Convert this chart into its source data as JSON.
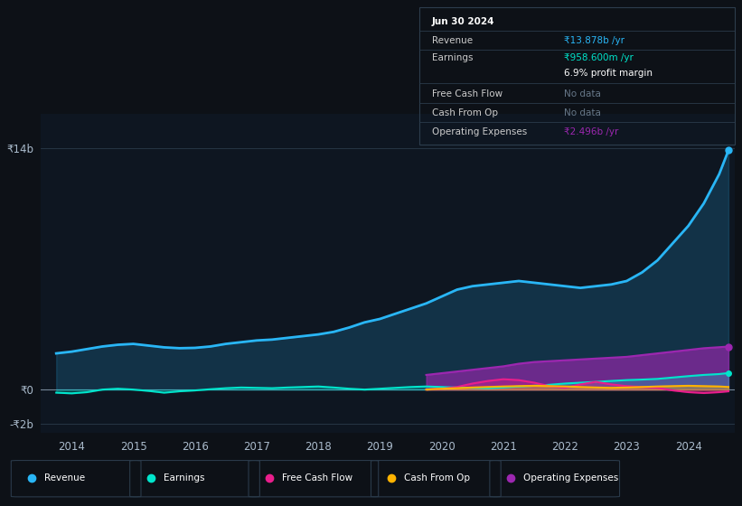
{
  "background_color": "#0d1117",
  "plot_bg_color": "#0e1621",
  "ylim": [
    -2500000000.0,
    16000000000.0
  ],
  "y_ticks": [
    -2000000000.0,
    0,
    14000000000.0
  ],
  "y_tick_labels": [
    "-₹2b",
    "₹0",
    "₹14b"
  ],
  "x_start_year": 2013.5,
  "x_end_year": 2024.75,
  "x_tick_years": [
    2014,
    2015,
    2016,
    2017,
    2018,
    2019,
    2020,
    2021,
    2022,
    2023,
    2024
  ],
  "colors": {
    "revenue": "#29b6f6",
    "earnings": "#00e5cc",
    "free_cash_flow": "#e91e8c",
    "cash_from_op": "#ffb300",
    "operating_expenses": "#9c27b0"
  },
  "info_box": {
    "date": "Jun 30 2024",
    "revenue_label": "Revenue",
    "revenue_val": "₹13.878b /yr",
    "earnings_label": "Earnings",
    "earnings_val": "₹958.600m /yr",
    "profit_margin": "6.9% profit margin",
    "fcf_label": "Free Cash Flow",
    "fcf_val": "No data",
    "cfo_label": "Cash From Op",
    "cfo_val": "No data",
    "opex_label": "Operating Expenses",
    "opex_val": "₹2.496b /yr"
  },
  "revenue_x": [
    2013.75,
    2014.0,
    2014.25,
    2014.5,
    2014.75,
    2015.0,
    2015.25,
    2015.5,
    2015.75,
    2016.0,
    2016.25,
    2016.5,
    2016.75,
    2017.0,
    2017.25,
    2017.5,
    2017.75,
    2018.0,
    2018.25,
    2018.5,
    2018.75,
    2019.0,
    2019.25,
    2019.5,
    2019.75,
    2020.0,
    2020.25,
    2020.5,
    2020.75,
    2021.0,
    2021.25,
    2021.5,
    2021.75,
    2022.0,
    2022.25,
    2022.5,
    2022.75,
    2023.0,
    2023.25,
    2023.5,
    2023.75,
    2024.0,
    2024.25,
    2024.5,
    2024.65
  ],
  "revenue_y": [
    2.1,
    2.2,
    2.35,
    2.5,
    2.6,
    2.65,
    2.55,
    2.45,
    2.4,
    2.42,
    2.5,
    2.65,
    2.75,
    2.85,
    2.9,
    3.0,
    3.1,
    3.2,
    3.35,
    3.6,
    3.9,
    4.1,
    4.4,
    4.7,
    5.0,
    5.4,
    5.8,
    6.0,
    6.1,
    6.2,
    6.3,
    6.2,
    6.1,
    6.0,
    5.9,
    6.0,
    6.1,
    6.3,
    6.8,
    7.5,
    8.5,
    9.5,
    10.8,
    12.5,
    13.878
  ],
  "earnings_x": [
    2013.75,
    2014.0,
    2014.25,
    2014.5,
    2014.75,
    2015.0,
    2015.25,
    2015.5,
    2015.75,
    2016.0,
    2016.25,
    2016.5,
    2016.75,
    2017.0,
    2017.25,
    2017.5,
    2017.75,
    2018.0,
    2018.25,
    2018.5,
    2018.75,
    2019.0,
    2019.25,
    2019.5,
    2019.75,
    2020.0,
    2020.25,
    2020.5,
    2020.75,
    2021.0,
    2021.25,
    2021.5,
    2021.75,
    2022.0,
    2022.25,
    2022.5,
    2022.75,
    2023.0,
    2023.25,
    2023.5,
    2023.75,
    2024.0,
    2024.25,
    2024.5,
    2024.65
  ],
  "earnings_y": [
    -0.18,
    -0.22,
    -0.15,
    0.0,
    0.05,
    0.0,
    -0.08,
    -0.18,
    -0.1,
    -0.05,
    0.02,
    0.08,
    0.12,
    0.1,
    0.08,
    0.12,
    0.15,
    0.18,
    0.12,
    0.05,
    0.0,
    0.05,
    0.1,
    0.15,
    0.18,
    0.15,
    0.12,
    0.1,
    0.08,
    0.12,
    0.18,
    0.22,
    0.28,
    0.35,
    0.4,
    0.45,
    0.5,
    0.55,
    0.58,
    0.62,
    0.7,
    0.78,
    0.85,
    0.9,
    0.9586
  ],
  "fcf_x": [
    2019.75,
    2020.0,
    2020.25,
    2020.5,
    2020.75,
    2021.0,
    2021.25,
    2021.5,
    2021.75,
    2022.0,
    2022.25,
    2022.5,
    2022.75,
    2023.0,
    2023.25,
    2023.5,
    2023.75,
    2024.0,
    2024.25,
    2024.5,
    2024.65
  ],
  "fcf_y": [
    0.0,
    0.05,
    0.15,
    0.35,
    0.5,
    0.6,
    0.55,
    0.4,
    0.2,
    0.1,
    0.3,
    0.45,
    0.3,
    0.2,
    0.15,
    0.1,
    -0.05,
    -0.15,
    -0.2,
    -0.15,
    -0.1
  ],
  "cfo_x": [
    2019.75,
    2020.0,
    2020.25,
    2020.5,
    2020.75,
    2021.0,
    2021.25,
    2021.5,
    2021.75,
    2022.0,
    2022.25,
    2022.5,
    2022.75,
    2023.0,
    2023.25,
    2023.5,
    2023.75,
    2024.0,
    2024.25,
    2024.5,
    2024.65
  ],
  "cfo_y": [
    0.0,
    0.05,
    0.08,
    0.12,
    0.15,
    0.18,
    0.2,
    0.22,
    0.2,
    0.18,
    0.15,
    0.12,
    0.1,
    0.12,
    0.15,
    0.18,
    0.2,
    0.22,
    0.2,
    0.18,
    0.15
  ],
  "opex_x": [
    2019.75,
    2020.0,
    2020.25,
    2020.5,
    2020.75,
    2021.0,
    2021.25,
    2021.5,
    2021.75,
    2022.0,
    2022.25,
    2022.5,
    2022.75,
    2023.0,
    2023.25,
    2023.5,
    2023.75,
    2024.0,
    2024.25,
    2024.5,
    2024.65
  ],
  "opex_y": [
    0.85,
    0.95,
    1.05,
    1.15,
    1.25,
    1.35,
    1.5,
    1.6,
    1.65,
    1.7,
    1.75,
    1.8,
    1.85,
    1.9,
    2.0,
    2.1,
    2.2,
    2.3,
    2.4,
    2.46,
    2.496
  ],
  "legend_items": [
    {
      "label": "Revenue",
      "color": "#29b6f6"
    },
    {
      "label": "Earnings",
      "color": "#00e5cc"
    },
    {
      "label": "Free Cash Flow",
      "color": "#e91e8c"
    },
    {
      "label": "Cash From Op",
      "color": "#ffb300"
    },
    {
      "label": "Operating Expenses",
      "color": "#9c27b0"
    }
  ]
}
